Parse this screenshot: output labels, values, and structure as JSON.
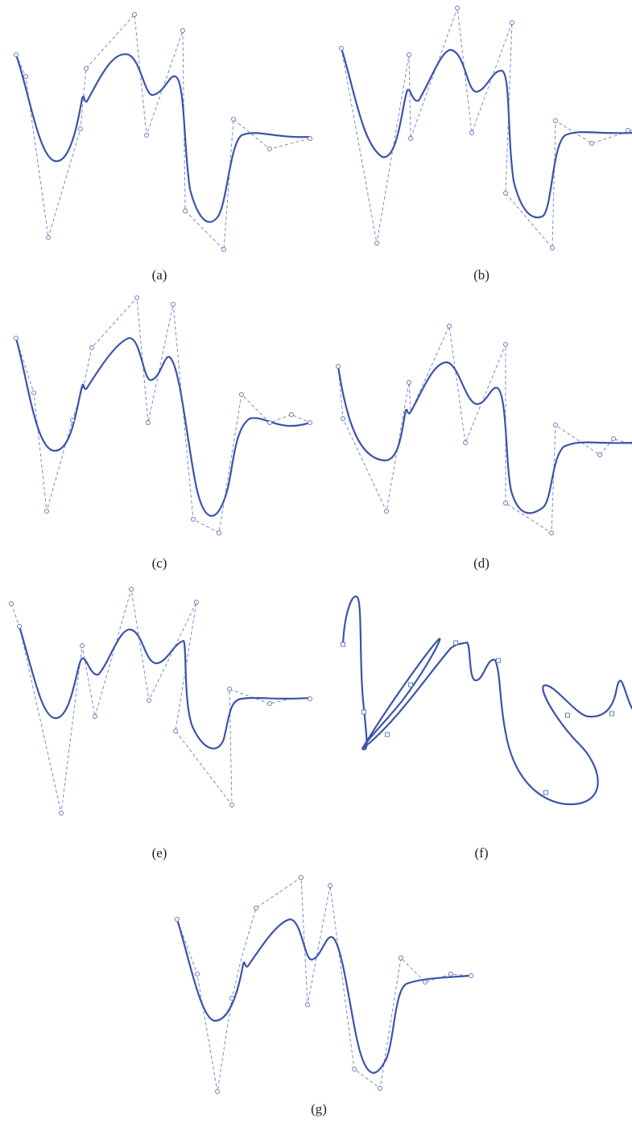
{
  "figure": {
    "panels": [
      {
        "id": "a",
        "caption": "(a)"
      },
      {
        "id": "b",
        "caption": "(b)"
      },
      {
        "id": "c",
        "caption": "(c)"
      },
      {
        "id": "d",
        "caption": "(d)"
      },
      {
        "id": "e",
        "caption": "(e)"
      },
      {
        "id": "f",
        "caption": "(f)"
      },
      {
        "id": "g",
        "caption": "(g)"
      }
    ],
    "colors": {
      "curve": "#3b54a8",
      "control_polygon": "#7a88c8",
      "control_point": "#6b7ab8"
    }
  }
}
